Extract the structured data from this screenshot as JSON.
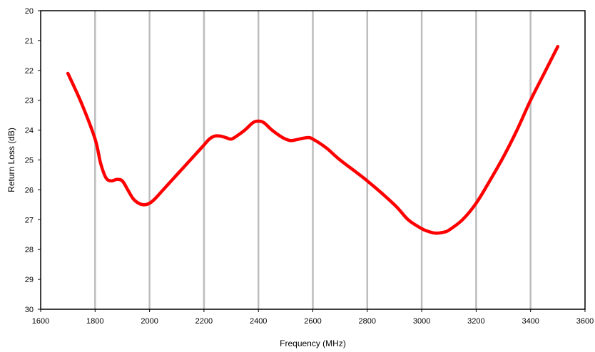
{
  "chart_data": {
    "type": "line",
    "xlabel": "Frequency (MHz)",
    "ylabel": "Return Loss (dB)",
    "xlim": [
      1600,
      3600
    ],
    "ylim": [
      20,
      30
    ],
    "y_inverted": true,
    "x_ticks": [
      1600,
      1800,
      2000,
      2200,
      2400,
      2600,
      2800,
      3000,
      3200,
      3400,
      3600
    ],
    "y_ticks": [
      20,
      21,
      22,
      23,
      24,
      25,
      26,
      27,
      28,
      29,
      30
    ],
    "grid": "vertical",
    "legend": "none",
    "series": [
      {
        "color": "#ff0000",
        "x": [
          1700,
          1750,
          1800,
          1820,
          1840,
          1860,
          1880,
          1900,
          1920,
          1940,
          1960,
          1980,
          2000,
          2020,
          2050,
          2100,
          2150,
          2180,
          2200,
          2220,
          2240,
          2260,
          2280,
          2300,
          2320,
          2350,
          2380,
          2400,
          2420,
          2450,
          2480,
          2500,
          2520,
          2550,
          2580,
          2600,
          2650,
          2700,
          2800,
          2900,
          2950,
          3000,
          3020,
          3050,
          3080,
          3100,
          3150,
          3200,
          3250,
          3300,
          3350,
          3400,
          3450,
          3500
        ],
        "y": [
          22.1,
          23.1,
          24.3,
          25.1,
          25.6,
          25.7,
          25.65,
          25.7,
          26.0,
          26.3,
          26.45,
          26.5,
          26.45,
          26.3,
          26.0,
          25.5,
          25.0,
          24.7,
          24.5,
          24.3,
          24.2,
          24.2,
          24.25,
          24.3,
          24.2,
          24.0,
          23.75,
          23.7,
          23.75,
          24.0,
          24.2,
          24.3,
          24.35,
          24.3,
          24.25,
          24.3,
          24.6,
          25.0,
          25.7,
          26.5,
          27.0,
          27.3,
          27.38,
          27.45,
          27.42,
          27.35,
          27.0,
          26.45,
          25.7,
          24.9,
          24.0,
          23.0,
          22.1,
          21.2
        ]
      }
    ]
  }
}
